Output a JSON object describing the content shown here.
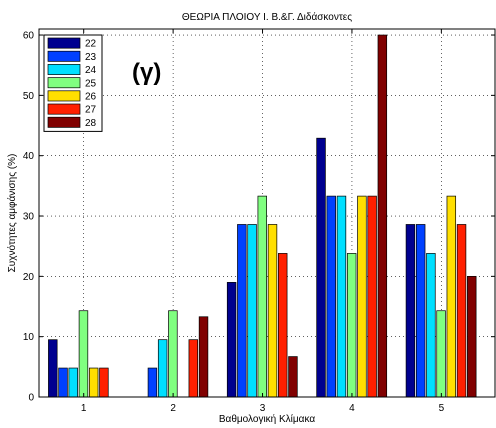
{
  "chart_data": {
    "type": "bar",
    "title": "ΘΕΩΡΙΑ ΠΛΟΙΟΥ Ι. Β.&Γ. Διδάσκοντες",
    "xlabel": "Βαθμολογική Κλίμακα",
    "ylabel": "Συχνότητες αμφάνισης (%)",
    "annotation": "(γ)",
    "categories": [
      "1",
      "2",
      "3",
      "4",
      "5"
    ],
    "ylim": [
      0,
      61
    ],
    "yticks": [
      0,
      10,
      20,
      30,
      40,
      50,
      60
    ],
    "grid": true,
    "legend_position": "top-left",
    "series": [
      {
        "name": "22",
        "color": "#00008f",
        "values": [
          9.5,
          0,
          19.0,
          42.9,
          28.6
        ]
      },
      {
        "name": "23",
        "color": "#0040ff",
        "values": [
          4.8,
          4.8,
          28.6,
          33.3,
          28.6
        ]
      },
      {
        "name": "24",
        "color": "#00dfff",
        "values": [
          4.8,
          9.5,
          28.6,
          33.3,
          23.8
        ]
      },
      {
        "name": "25",
        "color": "#80ff80",
        "values": [
          14.3,
          14.3,
          33.3,
          23.8,
          14.3
        ]
      },
      {
        "name": "26",
        "color": "#ffdf00",
        "values": [
          4.8,
          0,
          28.6,
          33.3,
          33.3
        ]
      },
      {
        "name": "27",
        "color": "#ff2000",
        "values": [
          4.8,
          9.5,
          23.8,
          33.3,
          28.6
        ]
      },
      {
        "name": "28",
        "color": "#800000",
        "values": [
          0,
          13.3,
          6.7,
          60.0,
          20.0
        ]
      }
    ]
  }
}
